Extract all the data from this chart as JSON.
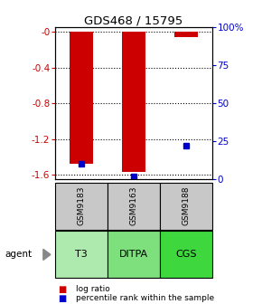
{
  "title": "GDS468 / 15795",
  "samples": [
    "GSM9183",
    "GSM9163",
    "GSM9188"
  ],
  "agents": [
    "T3",
    "DITPA",
    "CGS"
  ],
  "agent_colors": [
    "#aeeaae",
    "#7de07d",
    "#3ed83e"
  ],
  "sample_bg_color": "#c8c8c8",
  "log_ratio_color": "#cc0000",
  "percentile_color": "#0000cc",
  "log_ratios": [
    -1.48,
    -1.57,
    -0.06
  ],
  "percentile_ranks": [
    10,
    2,
    22
  ],
  "ylim_left": [
    -1.65,
    0.05
  ],
  "yticks_left": [
    0,
    -0.4,
    -0.8,
    -1.2,
    -1.6
  ],
  "ytick_labels_left": [
    "-0",
    "-0.4",
    "-0.8",
    "-1.2",
    "-1.6"
  ],
  "yticks_right_pct": [
    0,
    25,
    50,
    75,
    100
  ],
  "ytick_labels_right": [
    "0",
    "25",
    "50",
    "75",
    "100%"
  ],
  "bar_width": 0.45
}
